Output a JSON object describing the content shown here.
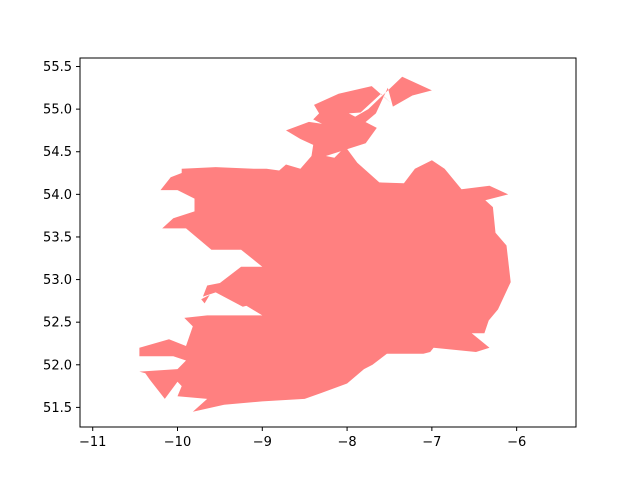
{
  "chart_data": {
    "type": "area",
    "title": "",
    "xlabel": "",
    "ylabel": "",
    "xlim": [
      -11.15,
      -5.3
    ],
    "ylim": [
      51.27,
      55.6
    ],
    "grid": false,
    "x_ticks": [
      -11,
      -10,
      -9,
      -8,
      -7,
      -6
    ],
    "x_tick_labels": [
      "−11",
      "−10",
      "−9",
      "−8",
      "−7",
      "−6"
    ],
    "y_ticks": [
      51.5,
      52.0,
      52.5,
      53.0,
      53.5,
      54.0,
      54.5,
      55.0,
      55.5
    ],
    "y_tick_labels": [
      "51.5",
      "52.0",
      "52.5",
      "53.0",
      "53.5",
      "54.0",
      "54.5",
      "55.0",
      "55.5"
    ],
    "fill_color": "#ff8080",
    "series": [
      {
        "polygon": [
          [
            -7.35,
            55.38
          ],
          [
            -7.0,
            55.22
          ],
          [
            -7.23,
            55.16
          ],
          [
            -7.46,
            55.03
          ],
          [
            -7.52,
            55.25
          ],
          [
            -7.66,
            54.95
          ],
          [
            -7.84,
            54.8
          ],
          [
            -8.14,
            54.75
          ],
          [
            -8.4,
            54.88
          ],
          [
            -8.33,
            54.95
          ],
          [
            -8.39,
            55.05
          ],
          [
            -8.1,
            55.18
          ],
          [
            -7.71,
            55.27
          ],
          [
            -7.48,
            55.07
          ],
          [
            -7.6,
            55.18
          ],
          [
            -7.84,
            54.96
          ],
          [
            -7.98,
            54.95
          ],
          [
            -7.65,
            54.78
          ],
          [
            -7.78,
            54.6
          ],
          [
            -8.25,
            54.45
          ],
          [
            -8.15,
            54.43
          ],
          [
            -8.02,
            54.56
          ],
          [
            -7.88,
            54.37
          ],
          [
            -7.62,
            54.14
          ],
          [
            -7.33,
            54.13
          ],
          [
            -7.2,
            54.3
          ],
          [
            -7.0,
            54.4
          ],
          [
            -6.85,
            54.3
          ],
          [
            -6.65,
            54.06
          ],
          [
            -6.32,
            54.1
          ],
          [
            -6.1,
            54.0
          ],
          [
            -6.37,
            53.93
          ],
          [
            -6.28,
            53.85
          ],
          [
            -6.25,
            53.55
          ],
          [
            -6.12,
            53.4
          ],
          [
            -6.07,
            52.97
          ],
          [
            -6.22,
            52.65
          ],
          [
            -6.33,
            52.52
          ],
          [
            -6.38,
            52.37
          ],
          [
            -6.53,
            52.37
          ],
          [
            -6.32,
            52.2
          ],
          [
            -6.48,
            52.15
          ],
          [
            -6.98,
            52.2
          ],
          [
            -7.02,
            52.15
          ],
          [
            -7.1,
            52.13
          ],
          [
            -7.53,
            52.13
          ],
          [
            -7.7,
            52.0
          ],
          [
            -7.8,
            51.95
          ],
          [
            -8.0,
            51.78
          ],
          [
            -8.3,
            51.67
          ],
          [
            -8.5,
            51.6
          ],
          [
            -9.0,
            51.57
          ],
          [
            -9.45,
            51.53
          ],
          [
            -9.82,
            51.45
          ],
          [
            -9.65,
            51.6
          ],
          [
            -10.0,
            51.63
          ],
          [
            -9.95,
            51.75
          ],
          [
            -10.0,
            51.8
          ],
          [
            -10.15,
            51.6
          ],
          [
            -10.33,
            51.83
          ],
          [
            -10.38,
            51.9
          ],
          [
            -10.45,
            51.92
          ],
          [
            -10.0,
            51.95
          ],
          [
            -9.9,
            52.05
          ],
          [
            -10.05,
            52.1
          ],
          [
            -10.45,
            52.1
          ],
          [
            -10.45,
            52.2
          ],
          [
            -10.1,
            52.3
          ],
          [
            -9.9,
            52.22
          ],
          [
            -9.82,
            52.45
          ],
          [
            -9.92,
            52.55
          ],
          [
            -9.65,
            52.58
          ],
          [
            -9.45,
            52.58
          ],
          [
            -9.0,
            52.58
          ],
          [
            -9.2,
            52.7
          ],
          [
            -9.25,
            52.78
          ],
          [
            -9.05,
            52.73
          ],
          [
            -9.23,
            52.68
          ],
          [
            -9.55,
            52.85
          ],
          [
            -9.7,
            52.8
          ],
          [
            -9.65,
            52.93
          ],
          [
            -9.5,
            52.96
          ],
          [
            -9.25,
            53.15
          ],
          [
            -9.0,
            53.15
          ],
          [
            -9.25,
            53.35
          ],
          [
            -9.6,
            53.35
          ],
          [
            -9.9,
            53.6
          ],
          [
            -10.18,
            53.6
          ],
          [
            -10.05,
            53.72
          ],
          [
            -9.8,
            53.8
          ],
          [
            -9.8,
            53.95
          ],
          [
            -10.0,
            54.05
          ],
          [
            -10.2,
            54.05
          ],
          [
            -10.08,
            54.2
          ],
          [
            -9.95,
            54.25
          ],
          [
            -9.95,
            54.3
          ],
          [
            -9.55,
            54.32
          ],
          [
            -9.1,
            54.3
          ],
          [
            -8.95,
            54.3
          ],
          [
            -8.8,
            54.28
          ],
          [
            -8.72,
            54.35
          ],
          [
            -8.55,
            54.3
          ],
          [
            -8.42,
            54.45
          ],
          [
            -8.4,
            54.58
          ],
          [
            -8.55,
            54.65
          ],
          [
            -8.72,
            54.75
          ],
          [
            -8.45,
            54.85
          ],
          [
            -8.1,
            54.8
          ],
          [
            -7.75,
            55.0
          ]
        ]
      },
      {
        "polygon": [
          [
            -9.62,
            52.82
          ],
          [
            -9.72,
            52.77
          ],
          [
            -9.68,
            52.72
          ]
        ]
      }
    ]
  }
}
